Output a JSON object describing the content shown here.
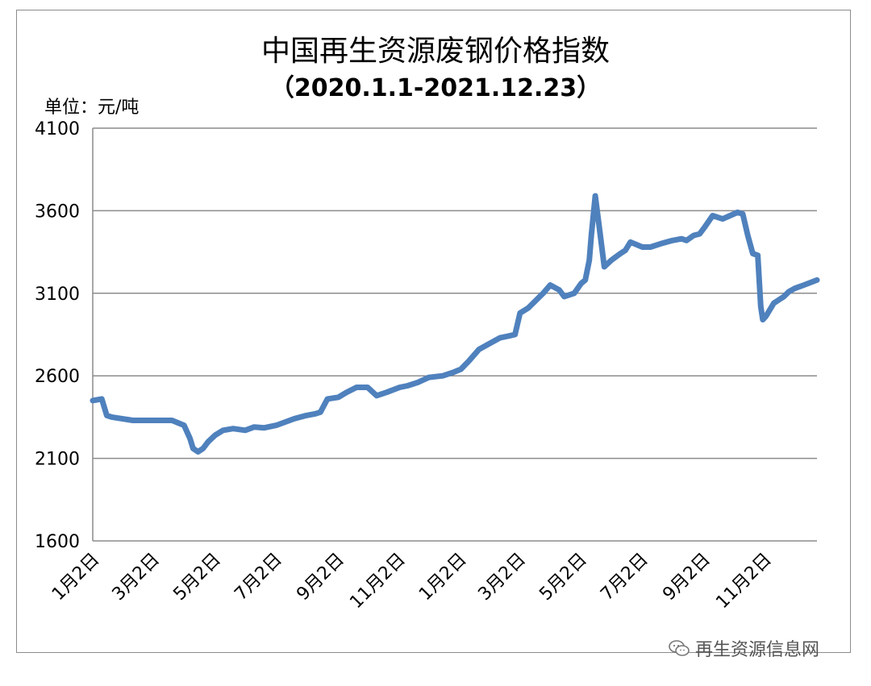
{
  "chart_data": {
    "type": "line",
    "title": "中国再生资源废钢价格指数",
    "subtitle": "（2020.1.1-2021.12.23）",
    "unit_label": "单位：元/吨",
    "xlabel": "",
    "ylabel": "",
    "ylim": [
      1600,
      4100
    ],
    "yticks": [
      1600,
      2100,
      2600,
      3100,
      3600,
      4100
    ],
    "xtick_labels": [
      "1月2日",
      "3月2日",
      "5月2日",
      "7月2日",
      "9月2日",
      "11月2日",
      "1月2日",
      "3月2日",
      "5月2日",
      "7月2日",
      "9月2日",
      "11月2日"
    ],
    "xtick_positions": [
      "2020-01-02",
      "2020-03-02",
      "2020-05-02",
      "2020-07-02",
      "2020-09-02",
      "2020-11-02",
      "2021-01-02",
      "2021-03-02",
      "2021-05-02",
      "2021-07-02",
      "2021-09-02",
      "2021-11-02"
    ],
    "grid": true,
    "legend": "none",
    "line_color": "#4F81BD",
    "series": [
      {
        "x": [
          "2020-01-01",
          "2020-01-10",
          "2020-01-15",
          "2020-01-20",
          "2020-01-25",
          "2020-02-10",
          "2020-02-20",
          "2020-03-02",
          "2020-03-20",
          "2020-04-01",
          "2020-04-07",
          "2020-04-10",
          "2020-04-15",
          "2020-04-20",
          "2020-04-25",
          "2020-05-02",
          "2020-05-10",
          "2020-05-20",
          "2020-06-01",
          "2020-06-10",
          "2020-06-20",
          "2020-07-02",
          "2020-07-20",
          "2020-08-01",
          "2020-08-10",
          "2020-08-15",
          "2020-08-22",
          "2020-09-02",
          "2020-09-10",
          "2020-09-20",
          "2020-10-01",
          "2020-10-10",
          "2020-10-20",
          "2020-11-02",
          "2020-11-10",
          "2020-11-20",
          "2020-12-01",
          "2020-12-15",
          "2020-12-25",
          "2021-01-02",
          "2021-01-10",
          "2021-01-20",
          "2021-02-01",
          "2021-02-10",
          "2021-02-18",
          "2021-02-25",
          "2021-03-02",
          "2021-03-10",
          "2021-03-15",
          "2021-03-25",
          "2021-04-01",
          "2021-04-10",
          "2021-04-15",
          "2021-04-25",
          "2021-05-02",
          "2021-05-06",
          "2021-05-10",
          "2021-05-12",
          "2021-05-16",
          "2021-05-20",
          "2021-05-25",
          "2021-06-01",
          "2021-06-10",
          "2021-06-15",
          "2021-06-20",
          "2021-07-02",
          "2021-07-10",
          "2021-07-20",
          "2021-08-01",
          "2021-08-10",
          "2021-08-15",
          "2021-08-22",
          "2021-08-28",
          "2021-09-02",
          "2021-09-10",
          "2021-09-20",
          "2021-10-01",
          "2021-10-05",
          "2021-10-10",
          "2021-10-15",
          "2021-10-20",
          "2021-10-25",
          "2021-10-28",
          "2021-10-30",
          "2021-11-02",
          "2021-11-10",
          "2021-11-15",
          "2021-11-20",
          "2021-11-25",
          "2021-12-01",
          "2021-12-10",
          "2021-12-23"
        ],
        "y": [
          2450,
          2460,
          2360,
          2350,
          2345,
          2330,
          2330,
          2330,
          2330,
          2300,
          2220,
          2160,
          2140,
          2160,
          2200,
          2240,
          2270,
          2280,
          2270,
          2290,
          2285,
          2300,
          2340,
          2360,
          2370,
          2380,
          2460,
          2470,
          2500,
          2530,
          2530,
          2480,
          2500,
          2530,
          2540,
          2560,
          2590,
          2600,
          2620,
          2640,
          2690,
          2760,
          2800,
          2830,
          2840,
          2850,
          2980,
          3010,
          3040,
          3100,
          3150,
          3120,
          3080,
          3100,
          3160,
          3180,
          3300,
          3450,
          3690,
          3500,
          3260,
          3300,
          3340,
          3360,
          3410,
          3380,
          3380,
          3400,
          3420,
          3430,
          3420,
          3450,
          3460,
          3500,
          3570,
          3550,
          3580,
          3590,
          3580,
          3450,
          3340,
          3330,
          3020,
          2940,
          2960,
          3040,
          3060,
          3080,
          3110,
          3130,
          3150,
          3180
        ]
      }
    ]
  },
  "watermark": {
    "text": "再生资源信息网",
    "icon": "wechat-icon"
  }
}
